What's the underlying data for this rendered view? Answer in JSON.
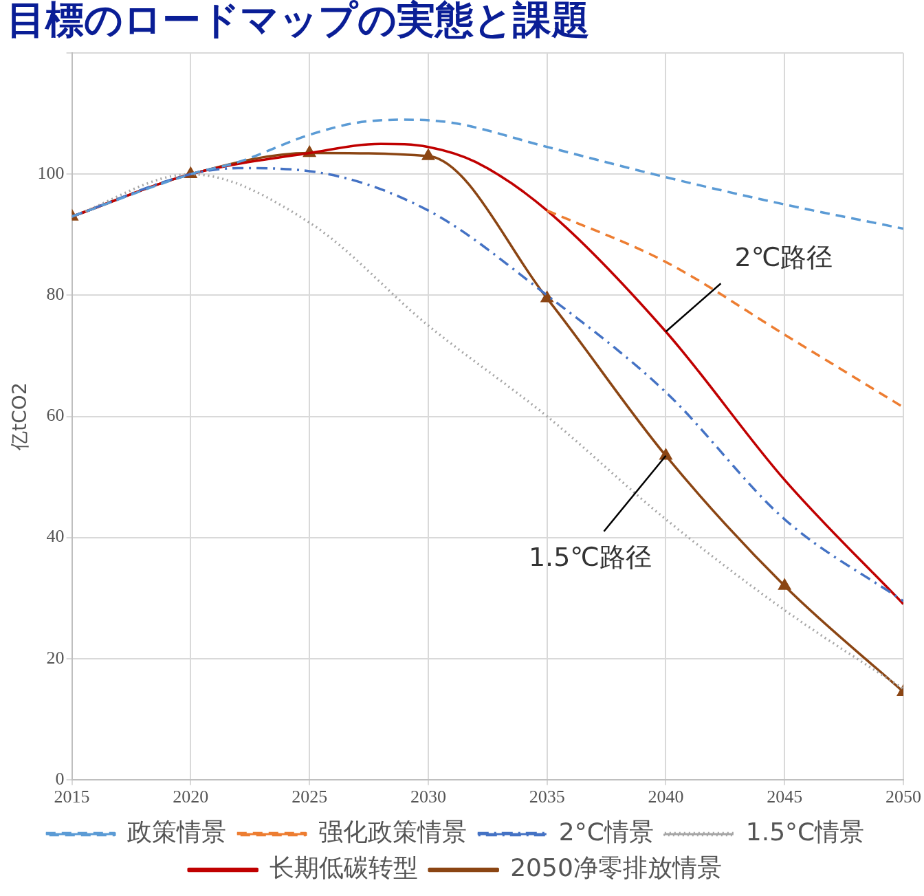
{
  "chart_data": {
    "type": "line",
    "title": "目標のロードマップの実態と課題",
    "ylabel": "亿tCO2",
    "xlim": [
      2015,
      2050
    ],
    "xticks": [
      2015,
      2020,
      2025,
      2030,
      2035,
      2040,
      2045,
      2050
    ],
    "ylim": [
      0,
      120
    ],
    "yticks": [
      0,
      20,
      40,
      60,
      80,
      100,
      {
        "value": 120,
        "label": null
      }
    ],
    "grid": true,
    "legend": "bottom",
    "marker": "none",
    "series": [
      {
        "name": "政策情景",
        "color": "#5b9bd5",
        "line_style": "dashed",
        "x": [
          2015,
          2020,
          2022,
          2025,
          2027,
          2029,
          2031,
          2035,
          2040,
          2045,
          2050
        ],
        "values": [
          93,
          100,
          102,
          106.5,
          108.5,
          109,
          108.5,
          104.5,
          99.5,
          95,
          91
        ]
      },
      {
        "name": "强化政策情景",
        "color": "#ed7d31",
        "line_style": "dashed",
        "x": [
          2035,
          2040,
          2045,
          2050
        ],
        "values": [
          94,
          85.5,
          73.5,
          61.5
        ]
      },
      {
        "name": "2°C情景",
        "color": "#4472c4",
        "line_style": "dashdot",
        "x": [
          2015,
          2020,
          2022,
          2025,
          2030,
          2035,
          2040,
          2045,
          2050
        ],
        "values": [
          93,
          100,
          101,
          100.5,
          94,
          80,
          64,
          43,
          29.5
        ]
      },
      {
        "name": "1.5°C情景",
        "color": "#a5a5a5",
        "line_style": "dotted",
        "x": [
          2015,
          2020,
          2025,
          2030,
          2035,
          2040,
          2045,
          2050
        ],
        "values": [
          93,
          100,
          92,
          75,
          60,
          43,
          28,
          15
        ]
      },
      {
        "name": "长期低碳转型",
        "color": "#c00000",
        "line_style": "solid",
        "x": [
          2015,
          2020,
          2025,
          2028,
          2030,
          2032,
          2035,
          2040,
          2045,
          2050
        ],
        "values": [
          93,
          100,
          103.5,
          105,
          104.5,
          102,
          94,
          74,
          49.5,
          29
        ]
      },
      {
        "name": "2050净零排放情景",
        "color": "#8b4513",
        "line_style": "solid",
        "marker": "triangle",
        "x": [
          2015,
          2020,
          2025,
          2030,
          2035,
          2040,
          2045,
          2050
        ],
        "values": [
          93,
          100,
          103.5,
          103,
          79.5,
          53.5,
          32,
          14.5
        ]
      }
    ],
    "annotations": [
      {
        "text": "2℃路径",
        "x": 2040,
        "y": 74
      },
      {
        "text": "1.5℃路径",
        "x": 2040,
        "y": 53.5
      }
    ]
  }
}
